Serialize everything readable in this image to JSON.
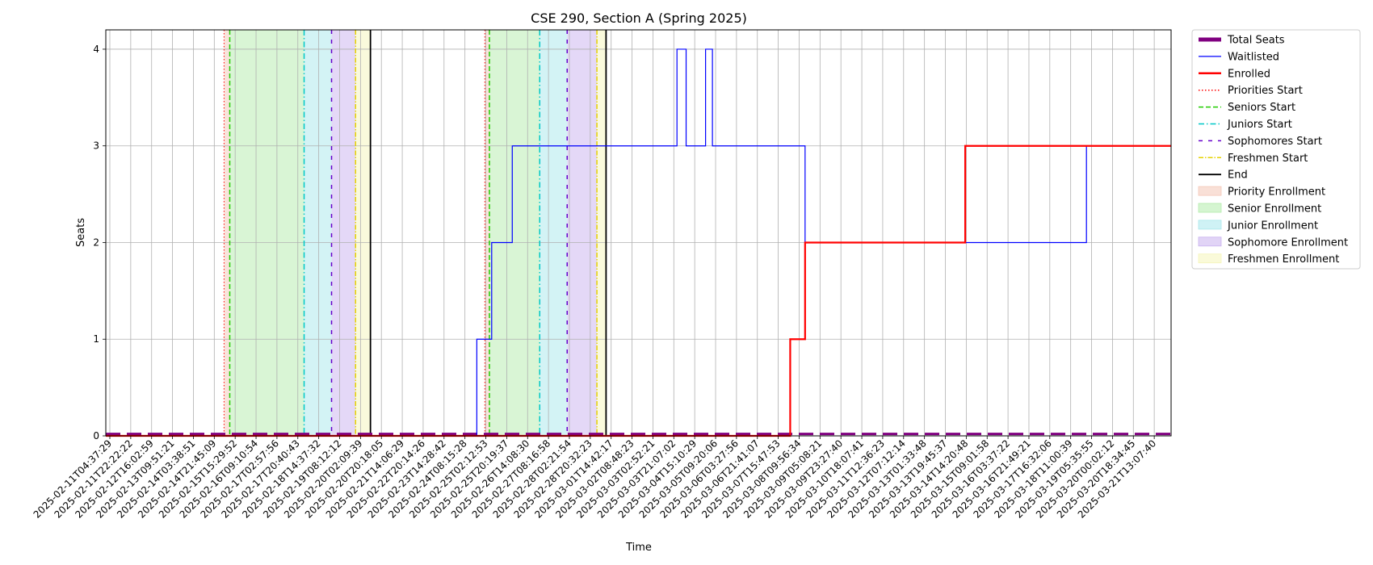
{
  "chart_data": {
    "type": "line",
    "title": "CSE 290, Section A (Spring 2025)",
    "xlabel": "Time",
    "ylabel": "Seats",
    "ylim": [
      0,
      4.2
    ],
    "yticks": [
      0,
      1,
      2,
      3,
      4
    ],
    "grid": true,
    "legend_position": "outside-right",
    "x_start": "2025-02-11T04:37:29",
    "x_end": "2025-03-22T00:00:00",
    "x_tick_labels": [
      "2025-02-11T04:37:29",
      "2025-02-11T22:22:22",
      "2025-02-12T16:02:59",
      "2025-02-13T09:51:21",
      "2025-02-14T03:38:51",
      "2025-02-14T21:45:09",
      "2025-02-15T15:29:52",
      "2025-02-16T09:10:54",
      "2025-02-17T02:57:56",
      "2025-02-17T20:40:43",
      "2025-02-18T14:37:32",
      "2025-02-19T08:12:12",
      "2025-02-20T02:09:39",
      "2025-02-20T20:18:05",
      "2025-02-21T14:06:29",
      "2025-02-22T20:14:26",
      "2025-02-23T14:28:42",
      "2025-02-24T08:15:28",
      "2025-02-25T02:12:53",
      "2025-02-25T20:19:37",
      "2025-02-26T14:08:30",
      "2025-02-27T08:16:58",
      "2025-02-28T02:21:54",
      "2025-02-28T20:32:23",
      "2025-03-01T14:42:17",
      "2025-03-02T08:48:23",
      "2025-03-03T02:52:21",
      "2025-03-03T21:07:02",
      "2025-03-04T15:10:29",
      "2025-03-05T09:20:06",
      "2025-03-06T03:27:56",
      "2025-03-06T21:41:07",
      "2025-03-07T15:47:53",
      "2025-03-08T09:56:34",
      "2025-03-09T05:08:21",
      "2025-03-09T23:27:40",
      "2025-03-10T18:07:41",
      "2025-03-11T12:36:23",
      "2025-03-12T07:12:14",
      "2025-03-13T01:33:48",
      "2025-03-13T19:45:37",
      "2025-03-14T14:20:48",
      "2025-03-15T09:01:58",
      "2025-03-16T03:37:22",
      "2025-03-16T21:49:21",
      "2025-03-17T16:32:06",
      "2025-03-18T11:00:39",
      "2025-03-19T05:35:55",
      "2025-03-20T00:02:12",
      "2025-03-20T18:34:45",
      "2025-03-21T13:07:40"
    ],
    "phases": [
      {
        "label": "Priority Enrollment",
        "start": "2025-02-15T12:00:00",
        "end": "2025-02-15T17:00:00",
        "color": "#f4c7b7"
      },
      {
        "label": "Senior Enrollment",
        "start": "2025-02-15T17:00:00",
        "end": "2025-02-18T10:00:00",
        "color": "#b3ecab"
      },
      {
        "label": "Junior Enrollment",
        "start": "2025-02-18T10:00:00",
        "end": "2025-02-19T10:00:00",
        "color": "#a8e8ec"
      },
      {
        "label": "Sophomore Enrollment",
        "start": "2025-02-19T10:00:00",
        "end": "2025-02-20T07:00:00",
        "color": "#c9b1ef"
      },
      {
        "label": "Freshmen Enrollment",
        "start": "2025-02-20T07:00:00",
        "end": "2025-02-20T20:00:00",
        "color": "#f5f5b9"
      },
      {
        "label": "Priority Enrollment",
        "start": "2025-02-25T00:00:00",
        "end": "2025-02-25T04:00:00",
        "color": "#f4c7b7"
      },
      {
        "label": "Senior Enrollment",
        "start": "2025-02-25T04:00:00",
        "end": "2025-02-27T00:00:00",
        "color": "#b3ecab"
      },
      {
        "label": "Junior Enrollment",
        "start": "2025-02-27T00:00:00",
        "end": "2025-02-28T00:00:00",
        "color": "#a8e8ec"
      },
      {
        "label": "Sophomore Enrollment",
        "start": "2025-02-28T00:00:00",
        "end": "2025-03-01T02:00:00",
        "color": "#c9b1ef"
      },
      {
        "label": "Freshmen Enrollment",
        "start": "2025-03-01T02:00:00",
        "end": "2025-03-01T10:00:00",
        "color": "#f5f5b9"
      }
    ],
    "vlines": [
      {
        "kind": "priorities",
        "x": "2025-02-15T12:00:00"
      },
      {
        "kind": "seniors",
        "x": "2025-02-15T17:00:00"
      },
      {
        "kind": "juniors",
        "x": "2025-02-18T10:00:00"
      },
      {
        "kind": "sophomores",
        "x": "2025-02-19T10:00:00"
      },
      {
        "kind": "freshmen",
        "x": "2025-02-20T07:00:00"
      },
      {
        "kind": "end",
        "x": "2025-02-20T20:00:00"
      },
      {
        "kind": "priorities",
        "x": "2025-02-25T00:00:00"
      },
      {
        "kind": "seniors",
        "x": "2025-02-25T04:00:00"
      },
      {
        "kind": "juniors",
        "x": "2025-02-27T00:00:00"
      },
      {
        "kind": "sophomores",
        "x": "2025-02-28T00:00:00"
      },
      {
        "kind": "freshmen",
        "x": "2025-03-01T02:00:00"
      },
      {
        "kind": "end",
        "x": "2025-03-01T10:00:00"
      }
    ],
    "series": [
      {
        "name": "Total Seats",
        "key": "total",
        "color": "#800080",
        "points": [
          [
            "2025-02-11T04:37:29",
            0.02
          ],
          [
            "2025-03-22T00:00:00",
            0.02
          ]
        ]
      },
      {
        "name": "Waitlisted",
        "key": "waitlisted",
        "color": "#0000ff",
        "points": [
          [
            "2025-02-11T04:37:29",
            0
          ],
          [
            "2025-02-24T17:00:00",
            1
          ],
          [
            "2025-02-25T06:00:00",
            2
          ],
          [
            "2025-02-26T00:00:00",
            3
          ],
          [
            "2025-03-04T00:00:00",
            4
          ],
          [
            "2025-03-04T08:00:00",
            3
          ],
          [
            "2025-03-05T01:00:00",
            4
          ],
          [
            "2025-03-05T07:00:00",
            3
          ],
          [
            "2025-03-08T16:00:00",
            2
          ],
          [
            "2025-03-18T22:00:00",
            3
          ],
          [
            "2025-03-22T00:00:00",
            3
          ]
        ]
      },
      {
        "name": "Enrolled",
        "key": "enrolled",
        "color": "#ff0000",
        "points": [
          [
            "2025-02-11T04:37:29",
            0
          ],
          [
            "2025-03-08T03:00:00",
            1
          ],
          [
            "2025-03-08T16:00:00",
            2
          ],
          [
            "2025-03-14T12:00:00",
            3
          ],
          [
            "2025-03-22T00:00:00",
            3
          ]
        ]
      }
    ],
    "legend": [
      {
        "label": "Total Seats",
        "kind": "thick",
        "color": "#800080"
      },
      {
        "label": "Waitlisted",
        "kind": "line",
        "color": "#0000ff"
      },
      {
        "label": "Enrolled",
        "kind": "bold",
        "color": "#ff0000"
      },
      {
        "label": "Priorities Start",
        "kind": "dotted",
        "color": "#ff0000"
      },
      {
        "label": "Seniors Start",
        "kind": "dashed",
        "color": "#22cc00"
      },
      {
        "label": "Juniors Start",
        "kind": "dashdot",
        "color": "#00c8c8"
      },
      {
        "label": "Sophomores Start",
        "kind": "loose",
        "color": "#6600cc"
      },
      {
        "label": "Freshmen Start",
        "kind": "dashdot2",
        "color": "#e6d200"
      },
      {
        "label": "End",
        "kind": "solid-black",
        "color": "#000000"
      },
      {
        "label": "Priority Enrollment",
        "kind": "patch",
        "color": "#f4c7b7"
      },
      {
        "label": "Senior Enrollment",
        "kind": "patch",
        "color": "#b3ecab"
      },
      {
        "label": "Junior Enrollment",
        "kind": "patch",
        "color": "#a8e8ec"
      },
      {
        "label": "Sophomore Enrollment",
        "kind": "patch",
        "color": "#c9b1ef"
      },
      {
        "label": "Freshmen Enrollment",
        "kind": "patch",
        "color": "#f5f5b9"
      }
    ]
  }
}
